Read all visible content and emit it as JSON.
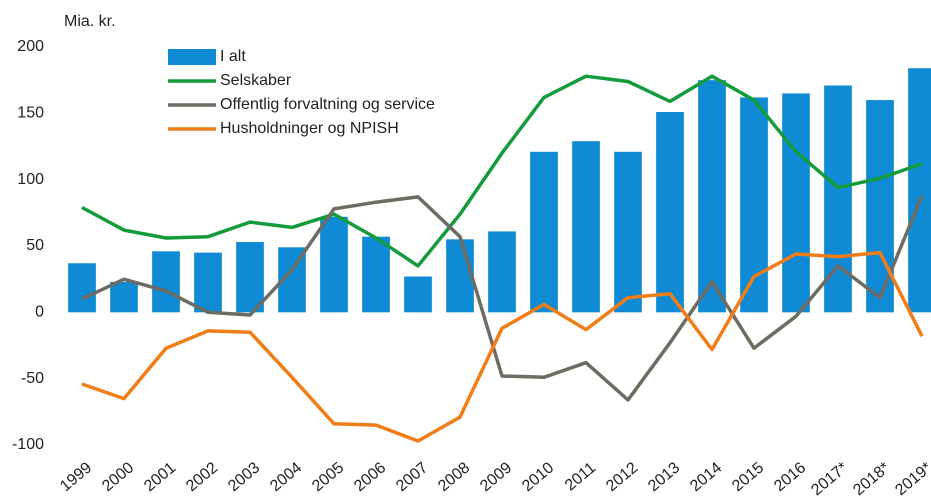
{
  "chart_data": {
    "type": "bar_line",
    "y_axis_label": "Mia. kr.",
    "categories": [
      "1999",
      "2000",
      "2001",
      "2002",
      "2003",
      "2004",
      "2005",
      "2006",
      "2007",
      "2008",
      "2009",
      "2010",
      "2011",
      "2012",
      "2013",
      "2014",
      "2015",
      "2016",
      "2017*",
      "2018*",
      "2019*"
    ],
    "series": [
      {
        "name": "I alt",
        "type": "bar",
        "color": "#0f8ad4",
        "values": [
          37,
          23,
          46,
          45,
          53,
          49,
          72,
          57,
          27,
          55,
          61,
          121,
          129,
          121,
          151,
          175,
          162,
          165,
          171,
          160,
          184
        ]
      },
      {
        "name": "Selskaber",
        "type": "line",
        "color": "#139b3c",
        "values": [
          79,
          62,
          56,
          57,
          68,
          64,
          74,
          56,
          35,
          74,
          120,
          162,
          178,
          174,
          159,
          178,
          160,
          121,
          94,
          101,
          112
        ]
      },
      {
        "name": "Offentlig forvaltning og service",
        "type": "line",
        "color": "#6e6b63",
        "values": [
          10,
          25,
          16,
          0,
          -2,
          32,
          78,
          83,
          87,
          57,
          -48,
          -49,
          -38,
          -66,
          -23,
          23,
          -27,
          -3,
          35,
          11,
          88
        ]
      },
      {
        "name": "Husholdninger og NPISH",
        "type": "line",
        "color": "#f07d16",
        "values": [
          -54,
          -65,
          -27,
          -14,
          -15,
          -49,
          -84,
          -85,
          -97,
          -79,
          -12,
          6,
          -13,
          11,
          14,
          -28,
          27,
          44,
          42,
          45,
          -18
        ]
      }
    ],
    "ylim": [
      -100,
      200
    ],
    "yticks": [
      -100,
      -50,
      0,
      50,
      100,
      150,
      200
    ],
    "grid": false,
    "legend": "top-left"
  }
}
